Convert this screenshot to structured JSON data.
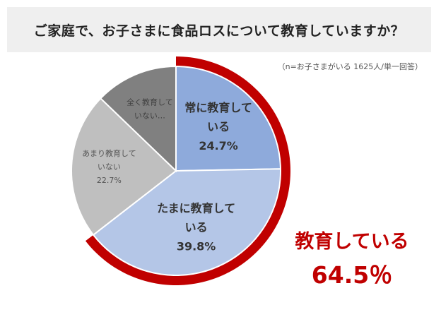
{
  "header": {
    "title": "ご家庭で、お子さまに食品ロスについて教育していますか？"
  },
  "note": "（n=お子さまがいる 1625人/単一回答）",
  "chart_data": {
    "type": "pie",
    "title": "ご家庭で、お子さまに食品ロスについて教育していますか？",
    "slices": [
      {
        "lines": [
          "常に教育して",
          "いる"
        ],
        "value": 24.7,
        "value_label": "24.7%",
        "color": "#8eaadb",
        "text_color": "#333333",
        "bold": true
      },
      {
        "lines": [
          "たまに教育して",
          "いる"
        ],
        "value": 39.8,
        "value_label": "39.8%",
        "color": "#b4c6e7",
        "text_color": "#333333",
        "bold": true
      },
      {
        "lines": [
          "あまり教育して",
          "いない"
        ],
        "value": 22.7,
        "value_label": "22.7%",
        "color": "#bfbfbf",
        "text_color": "#555555",
        "bold": false
      },
      {
        "lines": [
          "全く教育して",
          "いない…"
        ],
        "value": 12.8,
        "value_label": "",
        "color": "#808080",
        "text_color": "#404040",
        "bold": false
      }
    ],
    "highlight": {
      "label": "教育している",
      "value": 64.5,
      "value_label": "64.5％",
      "color": "#c00000"
    }
  }
}
